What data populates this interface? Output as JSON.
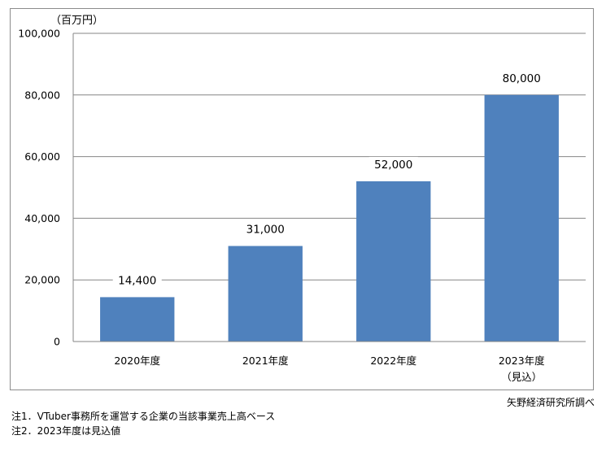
{
  "chart_data": {
    "type": "bar",
    "categories": [
      "2020年度",
      "2021年度",
      "2022年度",
      "2023年度"
    ],
    "category_sublabels": [
      "",
      "",
      "",
      "（見込）"
    ],
    "values": [
      14400,
      31000,
      52000,
      80000
    ],
    "value_labels": [
      "14,400",
      "31,000",
      "52,000",
      "80,000"
    ],
    "unit_label": "（百万円）",
    "ylim": [
      0,
      100000
    ],
    "yticks": [
      0,
      20000,
      40000,
      60000,
      80000,
      100000
    ],
    "ytick_labels": [
      "0",
      "20,000",
      "40,000",
      "60,000",
      "80,000",
      "100,000"
    ],
    "grid": true,
    "bar_color": "#4f81bd"
  },
  "source": "矢野経済研究所調べ",
  "notes": [
    "注1．VTuber事務所を運営する企業の当該事業売上高ベース",
    "注2．2023年度は見込値"
  ]
}
